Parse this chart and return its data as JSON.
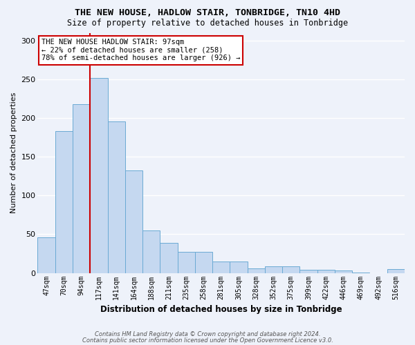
{
  "title1": "THE NEW HOUSE, HADLOW STAIR, TONBRIDGE, TN10 4HD",
  "title2": "Size of property relative to detached houses in Tonbridge",
  "xlabel": "Distribution of detached houses by size in Tonbridge",
  "ylabel": "Number of detached properties",
  "categories": [
    "47sqm",
    "70sqm",
    "94sqm",
    "117sqm",
    "141sqm",
    "164sqm",
    "188sqm",
    "211sqm",
    "235sqm",
    "258sqm",
    "281sqm",
    "305sqm",
    "328sqm",
    "352sqm",
    "375sqm",
    "399sqm",
    "422sqm",
    "446sqm",
    "469sqm",
    "492sqm",
    "516sqm"
  ],
  "values": [
    46,
    183,
    218,
    252,
    196,
    132,
    55,
    39,
    27,
    27,
    15,
    15,
    6,
    9,
    9,
    4,
    4,
    3,
    1,
    0,
    5
  ],
  "bar_color": "#c5d8f0",
  "bar_edge_color": "#6aaad4",
  "highlight_index": 2,
  "highlight_line_color": "#cc0000",
  "annotation_text": "THE NEW HOUSE HADLOW STAIR: 97sqm\n← 22% of detached houses are smaller (258)\n78% of semi-detached houses are larger (926) →",
  "annotation_box_color": "#ffffff",
  "annotation_box_edge": "#cc0000",
  "ylim": [
    0,
    310
  ],
  "yticks": [
    0,
    50,
    100,
    150,
    200,
    250,
    300
  ],
  "footer1": "Contains HM Land Registry data © Crown copyright and database right 2024.",
  "footer2": "Contains public sector information licensed under the Open Government Licence v3.0.",
  "bg_color": "#eef2fa",
  "grid_color": "#ffffff"
}
